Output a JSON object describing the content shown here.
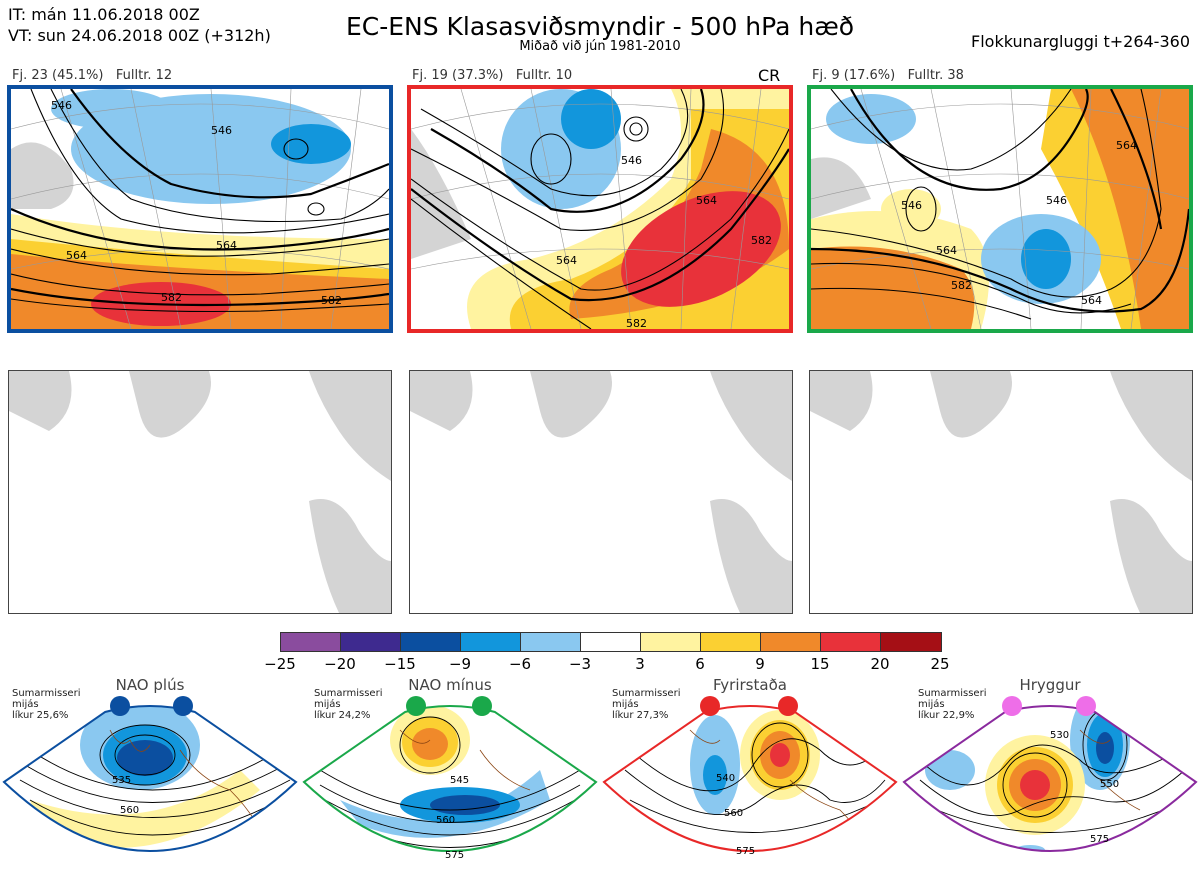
{
  "header": {
    "line1": "IT: mán 11.06.2018 00Z",
    "line2": "VT: sun 24.06.2018 00Z  (+312h)",
    "title": "EC-ENS Klasasviðsmyndir - 500 hPa hæð",
    "subtitle": "Miðað við jún 1981-2010",
    "window": "Flokkunargluggi t+264-360"
  },
  "clusters": [
    {
      "label": "Fj. 23 (45.1%)   Fulltr. 12",
      "color": "#0b4fa0",
      "contours": [
        "546",
        "564",
        "582",
        "582",
        "564",
        "546"
      ],
      "tag": ""
    },
    {
      "label": "Fj. 19 (37.3%)   Fulltr. 10",
      "color": "#e82828",
      "contours": [
        "546",
        "564",
        "564",
        "582",
        "582"
      ],
      "tag": "CR"
    },
    {
      "label": "Fj. 9 (17.6%)   Fulltr. 38",
      "color": "#1aa84a",
      "contours": [
        "546",
        "546",
        "564",
        "564",
        "582",
        "564"
      ],
      "tag": ""
    }
  ],
  "colorbar": {
    "colors": [
      "#8a4c9e",
      "#3e2a8f",
      "#0b4fa0",
      "#1296dc",
      "#8ac8f0",
      "#ffffff",
      "#fff3a0",
      "#fbd032",
      "#f0892a",
      "#e8323a",
      "#a50f15"
    ],
    "ticks": [
      "−25",
      "−20",
      "−15",
      "−9",
      "−6",
      "−3",
      "3",
      "6",
      "9",
      "15",
      "20",
      "25"
    ]
  },
  "regimes": [
    {
      "title": "NAO plús",
      "note": [
        "Sumarmisseri",
        "mijás",
        "líkur 25,6%"
      ],
      "color": "#0b4fa0",
      "dot": "#0b4fa0",
      "contours": [
        "535",
        "560"
      ]
    },
    {
      "title": "NAO mínus",
      "note": [
        "Sumarmisseri",
        "mijás",
        "líkur 24,2%"
      ],
      "color": "#1aa84a",
      "dot": "#1aa84a",
      "contours": [
        "545",
        "560",
        "575"
      ]
    },
    {
      "title": "Fyrirstaða",
      "note": [
        "Sumarmisseri",
        "mijás",
        "líkur 27,3%"
      ],
      "color": "#e82828",
      "dot": "#e82828",
      "contours": [
        "540",
        "560",
        "575"
      ]
    },
    {
      "title": "Hryggur",
      "note": [
        "Sumarmisseri",
        "mijás",
        "líkur 22,9%"
      ],
      "color": "#8a2a9e",
      "dot": "#ee6ee8",
      "contours": [
        "530",
        "550",
        "575"
      ]
    }
  ]
}
